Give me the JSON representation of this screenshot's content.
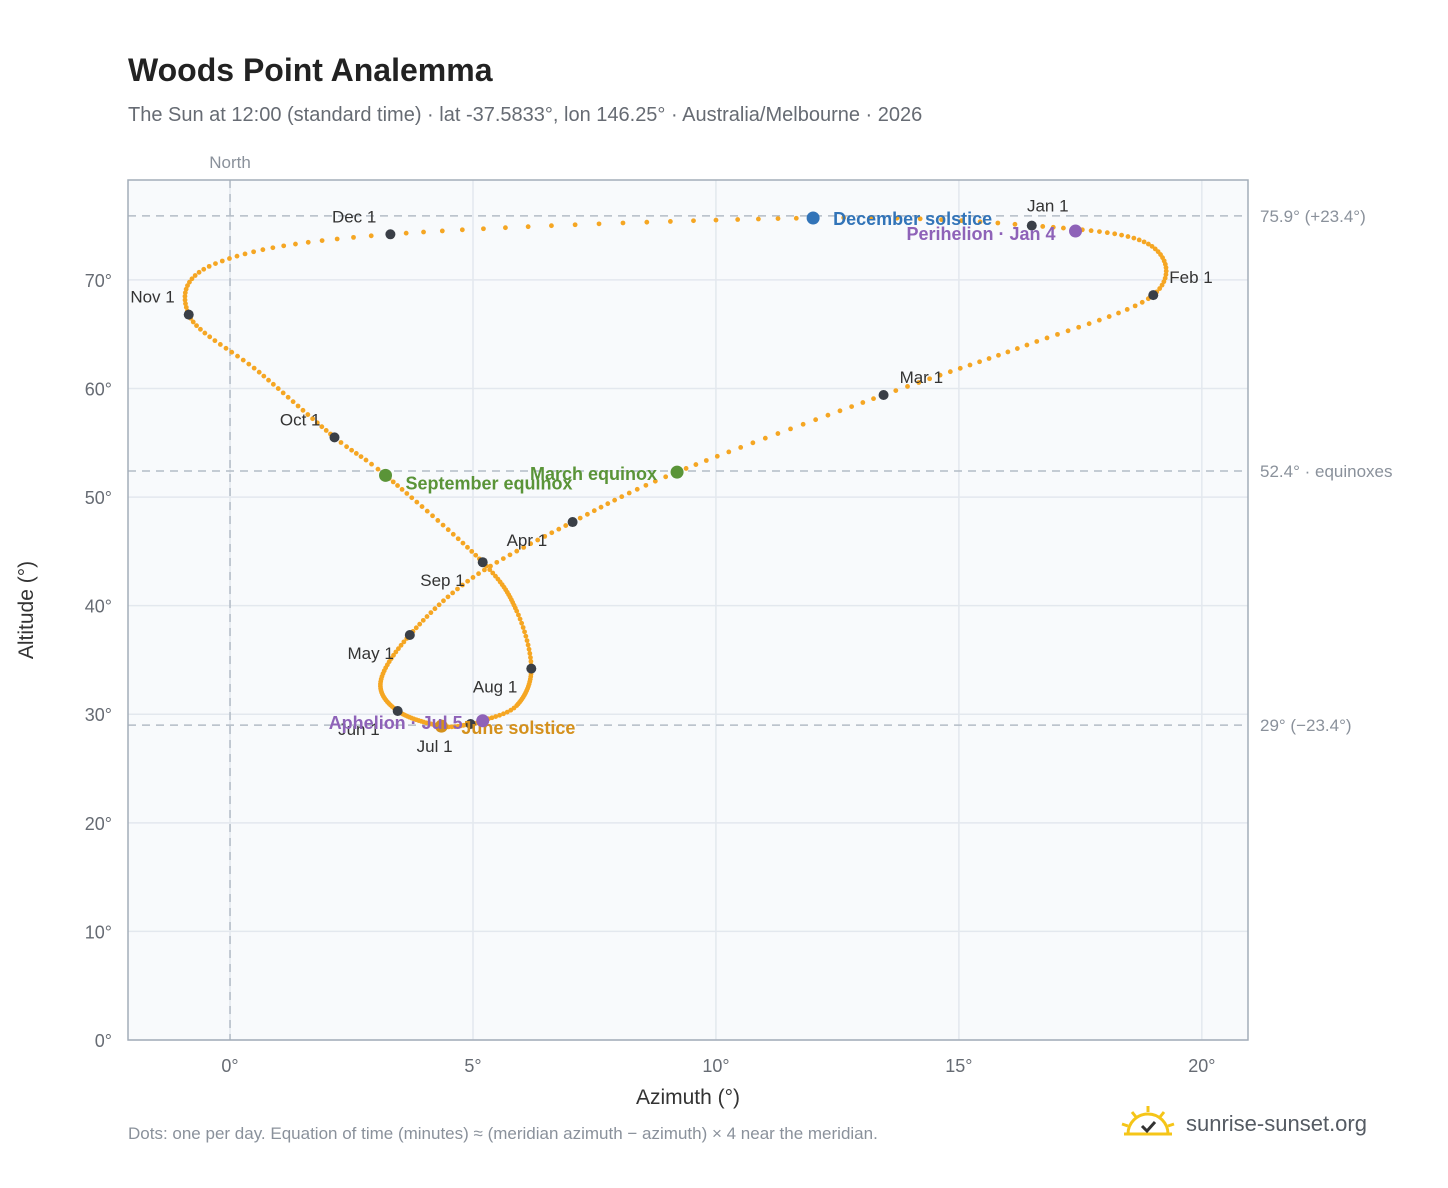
{
  "title": "Woods Point Analemma",
  "subtitle": "The Sun at 12:00 (standard time) · lat -37.5833°, lon 146.25° · Australia/Melbourne · 2026",
  "footnote": "Dots: one per day. Equation of time (minutes) ≈ (meridian azimuth − azimuth) × 4 near the meridian.",
  "brand": {
    "name": "sunrise-sunset.org",
    "icon": "sun-icon"
  },
  "chart_data": {
    "type": "scatter",
    "xlabel": "Azimuth (°)",
    "ylabel": "Altitude (°)",
    "xlim": [
      -2.1,
      20.95
    ],
    "ylim": [
      0,
      79.2
    ],
    "x_ticks": [
      {
        "value": 0,
        "label": "0°"
      },
      {
        "value": 5,
        "label": "5°"
      },
      {
        "value": 10,
        "label": "10°"
      },
      {
        "value": 15,
        "label": "15°"
      },
      {
        "value": 20,
        "label": "20°"
      }
    ],
    "y_ticks": [
      {
        "value": 0,
        "label": "0°"
      },
      {
        "value": 10,
        "label": "10°"
      },
      {
        "value": 20,
        "label": "20°"
      },
      {
        "value": 30,
        "label": "30°"
      },
      {
        "value": 40,
        "label": "40°"
      },
      {
        "value": 50,
        "label": "50°"
      },
      {
        "value": 60,
        "label": "60°"
      },
      {
        "value": 70,
        "label": "70°"
      }
    ],
    "grid": true,
    "north_line": {
      "x": 0,
      "label": "North"
    },
    "reference_lines": [
      {
        "y": 75.9,
        "label": "75.9° (+23.4°)"
      },
      {
        "y": 52.4,
        "label": "52.4° · equinoxes"
      },
      {
        "y": 29.0,
        "label": "29° (−23.4°)"
      }
    ],
    "path_anchors": [
      [
        1,
        16.5,
        75.0
      ],
      [
        16,
        18.9,
        73.3
      ],
      [
        32,
        19.0,
        68.6
      ],
      [
        46,
        16.4,
        64.0
      ],
      [
        60,
        13.45,
        59.4
      ],
      [
        78,
        9.2,
        52.3
      ],
      [
        91,
        7.05,
        47.7
      ],
      [
        106,
        5.0,
        42.6
      ],
      [
        121,
        3.7,
        37.3
      ],
      [
        136,
        3.1,
        33.0
      ],
      [
        152,
        3.45,
        30.3
      ],
      [
        172,
        4.35,
        28.9
      ],
      [
        182,
        4.95,
        29.1
      ],
      [
        186,
        5.2,
        29.4
      ],
      [
        196,
        5.9,
        30.8
      ],
      [
        213,
        6.2,
        34.2
      ],
      [
        227,
        5.9,
        39.5
      ],
      [
        244,
        5.2,
        44.0
      ],
      [
        265,
        3.2,
        52.0
      ],
      [
        274,
        2.15,
        55.5
      ],
      [
        290,
        0.6,
        61.5
      ],
      [
        305,
        -0.85,
        66.8
      ],
      [
        320,
        -0.3,
        71.5
      ],
      [
        335,
        3.3,
        74.2
      ],
      [
        355,
        12.0,
        75.7
      ],
      [
        365,
        16.5,
        75.0
      ]
    ],
    "month_markers": [
      {
        "label": "Jan 1",
        "x": 16.5,
        "y": 75.0
      },
      {
        "label": "Feb 1",
        "x": 19.0,
        "y": 68.6
      },
      {
        "label": "Mar 1",
        "x": 13.45,
        "y": 59.4
      },
      {
        "label": "Apr 1",
        "x": 7.05,
        "y": 47.7
      },
      {
        "label": "May 1",
        "x": 3.7,
        "y": 37.3
      },
      {
        "label": "Jun 1",
        "x": 3.45,
        "y": 30.3
      },
      {
        "label": "Jul 1",
        "x": 4.95,
        "y": 29.1
      },
      {
        "label": "Aug 1",
        "x": 6.2,
        "y": 34.2
      },
      {
        "label": "Sep 1",
        "x": 5.2,
        "y": 44.0
      },
      {
        "label": "Oct 1",
        "x": 2.15,
        "y": 55.5
      },
      {
        "label": "Nov 1",
        "x": -0.85,
        "y": 66.8
      },
      {
        "label": "Dec 1",
        "x": 3.3,
        "y": 74.2
      }
    ],
    "events": [
      {
        "label": "December solstice",
        "x": 12.0,
        "y": 75.7,
        "color": "#3274b8"
      },
      {
        "label": "Perihelion · Jan 4",
        "x": 17.4,
        "y": 74.5,
        "color": "#8e62b8"
      },
      {
        "label": "March equinox",
        "x": 9.2,
        "y": 52.3,
        "color": "#5a9438"
      },
      {
        "label": "September equinox",
        "x": 3.2,
        "y": 52.0,
        "color": "#5a9438"
      },
      {
        "label": "June solstice",
        "x": 4.35,
        "y": 28.9,
        "color": "#d4901c"
      },
      {
        "label": "Aphelion · Jul 5",
        "x": 5.2,
        "y": 29.4,
        "color": "#8e62b8"
      }
    ],
    "colors": {
      "path": "#f5a623",
      "marker": "#3a3f47"
    }
  }
}
